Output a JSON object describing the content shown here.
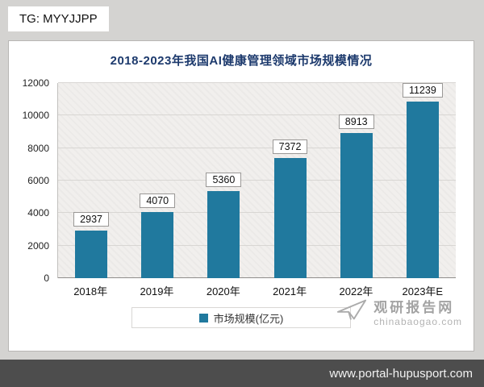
{
  "page": {
    "tg_label": "TG: MYYJJPP",
    "footer_url": "www.portal-hupusport.com"
  },
  "watermark": {
    "name": "观研报告网",
    "site": "chinabaogao.com"
  },
  "chart_data": {
    "type": "bar",
    "title": "2018-2023年我国AI健康管理领域市场规模情况",
    "categories": [
      "2018年",
      "2019年",
      "2020年",
      "2021年",
      "2022年",
      "2023年E"
    ],
    "values": [
      2937,
      4070,
      5360,
      7372,
      8913,
      11239
    ],
    "legend": [
      "市场规模(亿元)"
    ],
    "xlabel": "",
    "ylabel": "",
    "ylim": [
      0,
      12000
    ],
    "yticks": [
      0,
      2000,
      4000,
      6000,
      8000,
      10000,
      12000
    ],
    "grid": true,
    "legend_position": "bottom",
    "bar_color": "#20799E",
    "title_color": "#1D3A6D"
  }
}
